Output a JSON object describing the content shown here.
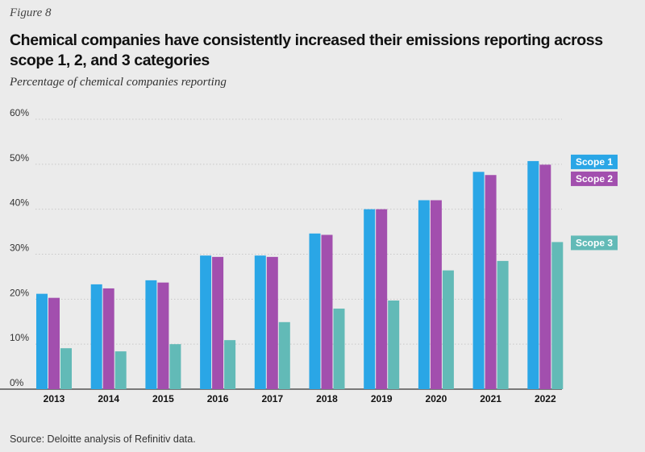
{
  "figure_label": "Figure 8",
  "title": "Chemical companies have consistently increased their emissions reporting across scope 1, 2, and 3 categories",
  "subtitle": "Percentage of chemical companies reporting",
  "source": "Source: Deloitte analysis of Refinitiv data.",
  "colors": {
    "scope1": "#2aa6e6",
    "scope2": "#a24fae",
    "scope3": "#62bab7",
    "grid": "#c8c8c8",
    "axis": "#333333"
  },
  "chart_data": {
    "type": "bar",
    "title": "Chemical companies have consistently increased their emissions reporting across scope 1, 2, and 3 categories",
    "ylabel": "Percentage of chemical companies reporting",
    "xlabel": "",
    "ylim": [
      0,
      60
    ],
    "yticks": [
      0,
      10,
      20,
      30,
      40,
      50,
      60
    ],
    "ytick_labels": [
      "0%",
      "10%",
      "20%",
      "30%",
      "40%",
      "50%",
      "60%"
    ],
    "categories": [
      "2013",
      "2014",
      "2015",
      "2016",
      "2017",
      "2018",
      "2019",
      "2020",
      "2021",
      "2022"
    ],
    "series": [
      {
        "name": "Scope 1",
        "color_key": "scope1",
        "values": [
          21.2,
          23.3,
          24.2,
          29.7,
          29.7,
          34.6,
          40.0,
          42.0,
          48.3,
          50.7
        ]
      },
      {
        "name": "Scope 2",
        "color_key": "scope2",
        "values": [
          20.3,
          22.4,
          23.7,
          29.4,
          29.4,
          34.3,
          40.0,
          42.0,
          47.6,
          49.9
        ]
      },
      {
        "name": "Scope 3",
        "color_key": "scope3",
        "values": [
          9.1,
          8.4,
          10.0,
          10.9,
          14.9,
          17.9,
          19.7,
          26.4,
          28.5,
          32.7
        ]
      }
    ],
    "legend": [
      {
        "label": "Scope 1",
        "color_key": "scope1",
        "series_index": 0
      },
      {
        "label": "Scope 2",
        "color_key": "scope2",
        "series_index": 1
      },
      {
        "label": "Scope 3",
        "color_key": "scope3",
        "series_index": 2
      }
    ],
    "legend_placement": "right, aligned with the 2022 values",
    "grid": true
  }
}
